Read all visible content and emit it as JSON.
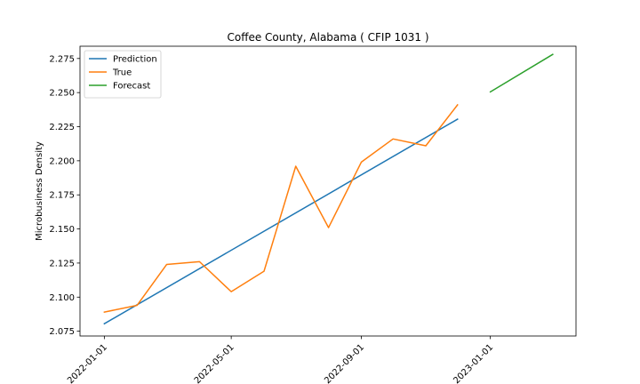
{
  "chart_data": {
    "type": "line",
    "title": "Coffee County, Alabama ( CFIP 1031 )",
    "xlabel": "",
    "ylabel": "Microbusiness Density",
    "x_tick_labels": [
      "2022-01-01",
      "2022-05-01",
      "2022-09-01",
      "2023-01-01"
    ],
    "x_tick_dates": [
      "2022-01-01",
      "2022-05-01",
      "2022-09-01",
      "2023-01-01"
    ],
    "xlim": [
      "2021-12-09",
      "2023-03-23"
    ],
    "y_ticks": [
      2.075,
      2.1,
      2.125,
      2.15,
      2.175,
      2.2,
      2.225,
      2.25,
      2.275
    ],
    "ylim": [
      2.0715,
      2.284
    ],
    "grid": false,
    "legend_position": "top-left",
    "series": [
      {
        "name": "Prediction",
        "color": "#1f77b4",
        "x": [
          "2022-01-01",
          "2022-12-01"
        ],
        "y": [
          2.0805,
          2.2305
        ]
      },
      {
        "name": "True",
        "color": "#ff7f0e",
        "x": [
          "2022-01-01",
          "2022-02-01",
          "2022-03-01",
          "2022-04-01",
          "2022-05-01",
          "2022-06-01",
          "2022-07-01",
          "2022-08-01",
          "2022-09-01",
          "2022-10-01",
          "2022-11-01",
          "2022-12-01"
        ],
        "y": [
          2.089,
          2.094,
          2.124,
          2.126,
          2.104,
          2.119,
          2.196,
          2.151,
          2.199,
          2.216,
          2.211,
          2.241
        ]
      },
      {
        "name": "Forecast",
        "color": "#2ca02c",
        "x": [
          "2023-01-01",
          "2023-03-01"
        ],
        "y": [
          2.2505,
          2.278
        ]
      }
    ]
  }
}
